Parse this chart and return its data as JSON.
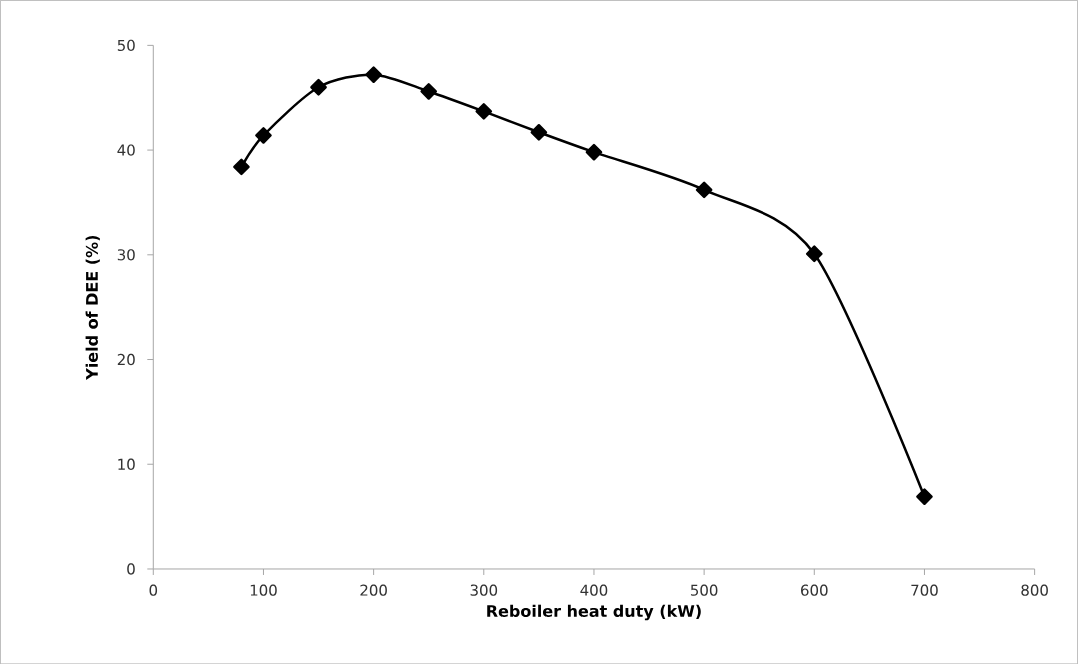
{
  "chart_data": {
    "type": "line",
    "xlabel": "Reboiler heat duty (kW)",
    "ylabel": "Yield of DEE (%)",
    "x": [
      80,
      100,
      150,
      200,
      250,
      300,
      350,
      400,
      500,
      600,
      700
    ],
    "series": [
      {
        "color": "#000000",
        "values": [
          38.4,
          41.4,
          46.0,
          47.2,
          45.6,
          43.7,
          41.7,
          39.8,
          36.2,
          30.1,
          6.9
        ]
      }
    ],
    "xlim": [
      0,
      800
    ],
    "xticks": [
      0,
      100,
      200,
      300,
      400,
      500,
      600,
      700,
      800
    ],
    "ylim": [
      0,
      50
    ],
    "yticks": [
      0,
      10,
      20,
      30,
      40,
      50
    ],
    "marker": "diamond",
    "line_style": "solid"
  }
}
